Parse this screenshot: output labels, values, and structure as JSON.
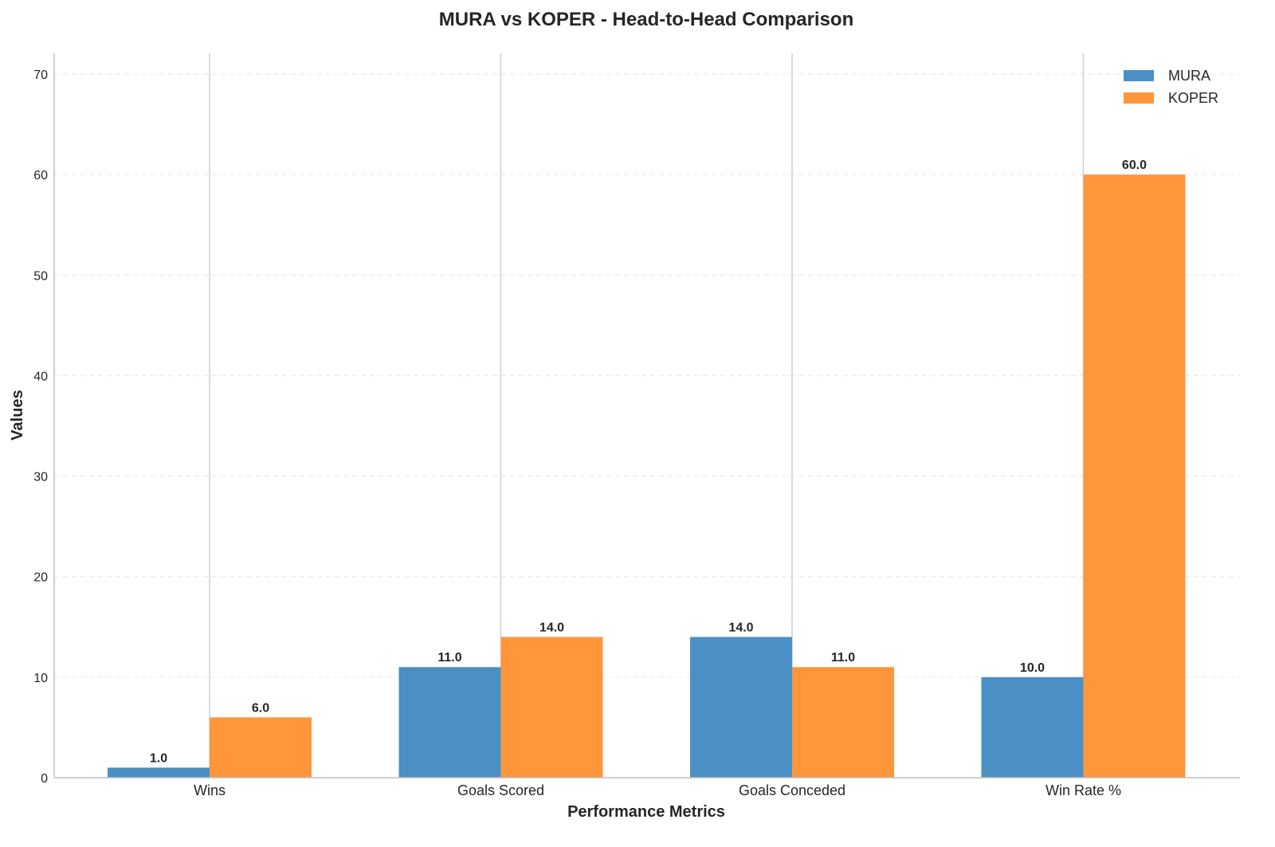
{
  "chart_data": {
    "type": "bar",
    "title": "MURA vs KOPER - Head-to-Head Comparison",
    "xlabel": "Performance Metrics",
    "ylabel": "Values",
    "categories": [
      "Wins",
      "Goals Scored",
      "Goals Conceded",
      "Win Rate %"
    ],
    "series": [
      {
        "name": "MURA",
        "values": [
          1.0,
          11.0,
          14.0,
          10.0
        ],
        "color": "#4a90c4"
      },
      {
        "name": "KOPER",
        "values": [
          6.0,
          14.0,
          11.0,
          60.0
        ],
        "color": "#ff963c"
      }
    ],
    "ylim": [
      0,
      72
    ],
    "yticks": [
      0,
      10,
      20,
      30,
      40,
      50,
      60,
      70
    ],
    "grid": "y-dashed",
    "legend_position": "top-right",
    "data_label_format": "one-decimal"
  }
}
